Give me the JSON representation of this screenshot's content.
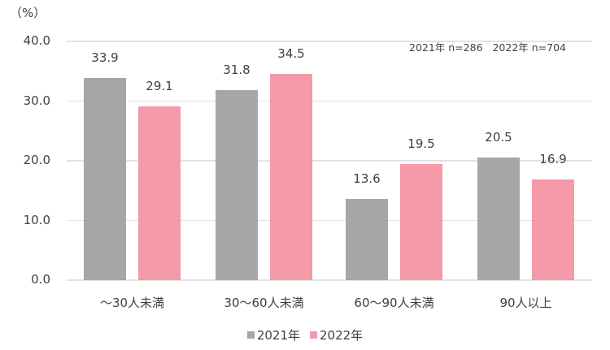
{
  "chart_data": {
    "type": "bar",
    "title": "",
    "unit_label": "（%）",
    "annotation": "2021年 n=286   2022年 n=704",
    "categories": [
      "～30人未満",
      "30～60人未満",
      "60～90人未満",
      "90人以上"
    ],
    "series": [
      {
        "name": "2021年",
        "color": "#a6a6a6",
        "values": [
          33.9,
          31.8,
          13.6,
          20.5
        ]
      },
      {
        "name": "2022年",
        "color": "#f49aa8",
        "values": [
          29.1,
          34.5,
          19.5,
          16.9
        ]
      }
    ],
    "xlabel": "",
    "ylabel": "%",
    "ylim": [
      0,
      40
    ],
    "yticks": [
      "0.0",
      "10.0",
      "20.0",
      "30.0",
      "40.0"
    ],
    "grid": true,
    "legend_position": "bottom"
  },
  "value_labels": {
    "s0": [
      "33.9",
      "31.8",
      "13.6",
      "20.5"
    ],
    "s1": [
      "29.1",
      "34.5",
      "19.5",
      "16.9"
    ]
  }
}
